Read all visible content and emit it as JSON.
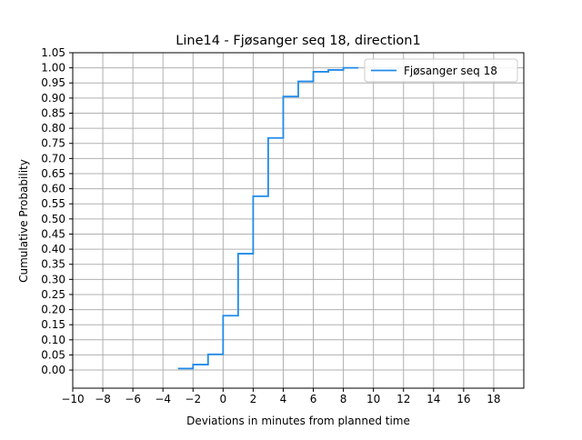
{
  "chart_data": {
    "type": "line",
    "step": "post",
    "title": "Line14 - Fjøsanger seq 18, direction1",
    "xlabel": "Deviations in minutes from planned time",
    "ylabel": "Cumulative Probability",
    "xlim": [
      -10,
      20
    ],
    "ylim": [
      -0.06,
      1.05
    ],
    "x_ticks": [
      -10,
      -8,
      -6,
      -4,
      -2,
      0,
      2,
      4,
      6,
      8,
      10,
      12,
      14,
      16,
      18
    ],
    "x_tick_labels": [
      "−10",
      "−8",
      "−6",
      "−4",
      "−2",
      "0",
      "2",
      "4",
      "6",
      "8",
      "10",
      "12",
      "14",
      "16",
      "18"
    ],
    "y_ticks": [
      0,
      0.05,
      0.1,
      0.15,
      0.2,
      0.25,
      0.3,
      0.35,
      0.4,
      0.45,
      0.5,
      0.55,
      0.6,
      0.65,
      0.7,
      0.75,
      0.8,
      0.85,
      0.9,
      0.95,
      1.0,
      1.05
    ],
    "y_tick_labels": [
      "0.00",
      "0.05",
      "0.10",
      "0.15",
      "0.20",
      "0.25",
      "0.30",
      "0.35",
      "0.40",
      "0.45",
      "0.50",
      "0.55",
      "0.60",
      "0.65",
      "0.70",
      "0.75",
      "0.80",
      "0.85",
      "0.90",
      "0.95",
      "1.00",
      "1.05"
    ],
    "grid": true,
    "legend": {
      "position": "top-right",
      "entries": [
        "Fjøsanger seq 18"
      ]
    },
    "series": [
      {
        "name": "Fjøsanger seq 18",
        "color": "#1f8bea",
        "x": [
          -3,
          -2,
          -1,
          0,
          1,
          2,
          3,
          4,
          5,
          6,
          7,
          8,
          9
        ],
        "y": [
          0.005,
          0.018,
          0.052,
          0.18,
          0.385,
          0.575,
          0.768,
          0.905,
          0.955,
          0.987,
          0.993,
          1.0,
          1.0
        ]
      }
    ]
  }
}
